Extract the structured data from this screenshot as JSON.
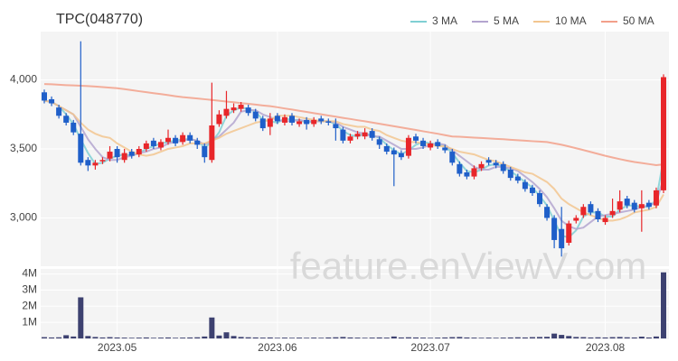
{
  "chart_data": {
    "type": "candlestick",
    "title": "TPC(048770)",
    "watermark": "feature.enViewV.com",
    "up_color": "#e8262a",
    "down_color": "#1f5fc9",
    "grid": true,
    "legend": "top-right",
    "ylim": [
      2650,
      4350
    ],
    "yticks": [
      {
        "value": 3000,
        "label": "3,000"
      },
      {
        "value": 3500,
        "label": "3,500"
      },
      {
        "value": 4000,
        "label": "4,000"
      }
    ],
    "xlim": [
      0,
      85
    ],
    "xticks": [
      {
        "value": 10,
        "label": "2023.05"
      },
      {
        "value": 32,
        "label": "2023.06"
      },
      {
        "value": 53,
        "label": "2023.07"
      },
      {
        "value": 77,
        "label": "2023.08"
      }
    ],
    "open": [
      3910,
      3860,
      3800,
      3740,
      3690,
      3610,
      3420,
      3380,
      3410,
      3430,
      3500,
      3420,
      3480,
      3460,
      3500,
      3560,
      3510,
      3550,
      3580,
      3550,
      3600,
      3560,
      3520,
      3420,
      3680,
      3740,
      3780,
      3790,
      3800,
      3770,
      3720,
      3660,
      3740,
      3690,
      3740,
      3680,
      3710,
      3680,
      3720,
      3700,
      3680,
      3640,
      3560,
      3590,
      3590,
      3630,
      3570,
      3520,
      3490,
      3470,
      3450,
      3590,
      3560,
      3510,
      3550,
      3510,
      3480,
      3390,
      3330,
      3300,
      3360,
      3420,
      3400,
      3390,
      3350,
      3300,
      3260,
      3220,
      3180,
      3080,
      3000,
      2920,
      2820,
      2980,
      3020,
      3100,
      3050,
      2970,
      3020,
      3060,
      3140,
      3110,
      3070,
      3110,
      3090,
      3200
    ],
    "high": [
      3930,
      3880,
      3820,
      3760,
      3710,
      4280,
      3440,
      3420,
      3440,
      3520,
      3520,
      3500,
      3500,
      3520,
      3560,
      3580,
      3570,
      3640,
      3600,
      3620,
      3620,
      3580,
      3540,
      3980,
      3780,
      3920,
      3830,
      3840,
      3820,
      3790,
      3740,
      3760,
      3760,
      3750,
      3760,
      3720,
      3730,
      3730,
      3740,
      3720,
      3720,
      3660,
      3610,
      3630,
      3650,
      3650,
      3590,
      3540,
      3510,
      3490,
      3600,
      3610,
      3580,
      3560,
      3570,
      3530,
      3500,
      3410,
      3350,
      3380,
      3410,
      3440,
      3420,
      3410,
      3370,
      3320,
      3280,
      3240,
      3200,
      3100,
      3020,
      3080,
      2980,
      3020,
      3100,
      3120,
      3070,
      3020,
      3140,
      3200,
      3160,
      3130,
      3200,
      3130,
      3220,
      4040
    ],
    "low": [
      3830,
      3810,
      3720,
      3670,
      3600,
      3380,
      3340,
      3350,
      3390,
      3410,
      3400,
      3400,
      3430,
      3440,
      3480,
      3500,
      3490,
      3530,
      3520,
      3530,
      3540,
      3500,
      3400,
      3400,
      3660,
      3720,
      3760,
      3770,
      3740,
      3700,
      3630,
      3600,
      3680,
      3670,
      3670,
      3660,
      3640,
      3660,
      3680,
      3670,
      3560,
      3540,
      3540,
      3570,
      3570,
      3560,
      3500,
      3460,
      3230,
      3420,
      3430,
      3540,
      3500,
      3490,
      3500,
      3470,
      3380,
      3300,
      3280,
      3280,
      3340,
      3380,
      3360,
      3320,
      3270,
      3250,
      3190,
      3160,
      3080,
      2980,
      2780,
      2720,
      2800,
      2960,
      3000,
      3020,
      2970,
      2950,
      3000,
      3040,
      3070,
      3040,
      2900,
      3060,
      3070,
      3180
    ],
    "close": [
      3850,
      3830,
      3740,
      3690,
      3620,
      3400,
      3380,
      3400,
      3420,
      3480,
      3440,
      3470,
      3450,
      3500,
      3540,
      3520,
      3550,
      3580,
      3540,
      3600,
      3560,
      3530,
      3440,
      3670,
      3750,
      3790,
      3800,
      3820,
      3760,
      3720,
      3650,
      3720,
      3700,
      3730,
      3690,
      3700,
      3680,
      3710,
      3700,
      3690,
      3650,
      3560,
      3590,
      3610,
      3620,
      3580,
      3530,
      3480,
      3460,
      3440,
      3580,
      3560,
      3520,
      3540,
      3520,
      3490,
      3400,
      3320,
      3300,
      3360,
      3390,
      3400,
      3380,
      3340,
      3290,
      3270,
      3210,
      3180,
      3100,
      3000,
      2840,
      2780,
      2960,
      3000,
      3080,
      3040,
      2990,
      3000,
      3050,
      3120,
      3090,
      3060,
      3100,
      3080,
      3200,
      4020
    ],
    "series": [
      {
        "name": "3 MA",
        "color": "#7fcfd3",
        "values": [
          3850,
          3840,
          3810,
          3750,
          3680,
          3570,
          3470,
          3390,
          3400,
          3430,
          3450,
          3460,
          3450,
          3470,
          3500,
          3520,
          3540,
          3550,
          3560,
          3570,
          3570,
          3560,
          3510,
          3550,
          3620,
          3740,
          3780,
          3800,
          3790,
          3770,
          3710,
          3700,
          3690,
          3720,
          3710,
          3710,
          3690,
          3700,
          3700,
          3700,
          3680,
          3630,
          3600,
          3590,
          3610,
          3600,
          3580,
          3530,
          3490,
          3460,
          3490,
          3530,
          3550,
          3540,
          3530,
          3520,
          3470,
          3400,
          3340,
          3330,
          3350,
          3380,
          3390,
          3370,
          3340,
          3300,
          3260,
          3220,
          3160,
          3090,
          2980,
          2870,
          2860,
          2910,
          3010,
          3040,
          3040,
          3010,
          3010,
          3060,
          3090,
          3090,
          3080,
          3080,
          3130,
          3430
        ]
      },
      {
        "name": "5 MA",
        "color": "#b3a4cf",
        "values": [
          3850,
          3840,
          3810,
          3780,
          3750,
          3660,
          3570,
          3500,
          3440,
          3420,
          3420,
          3440,
          3450,
          3470,
          3480,
          3500,
          3510,
          3540,
          3550,
          3560,
          3570,
          3560,
          3530,
          3560,
          3590,
          3640,
          3690,
          3770,
          3780,
          3780,
          3750,
          3730,
          3710,
          3700,
          3700,
          3710,
          3700,
          3700,
          3700,
          3700,
          3690,
          3660,
          3640,
          3620,
          3610,
          3590,
          3590,
          3560,
          3530,
          3500,
          3500,
          3500,
          3510,
          3530,
          3540,
          3530,
          3490,
          3450,
          3410,
          3370,
          3350,
          3350,
          3370,
          3370,
          3360,
          3340,
          3300,
          3260,
          3210,
          3150,
          3070,
          2980,
          2940,
          2920,
          2930,
          2970,
          3010,
          3020,
          3030,
          3040,
          3050,
          3060,
          3080,
          3090,
          3110,
          3290
        ]
      },
      {
        "name": "10 MA",
        "color": "#f2c58f",
        "values": [
          3850,
          3840,
          3810,
          3780,
          3750,
          3690,
          3640,
          3610,
          3590,
          3580,
          3540,
          3510,
          3480,
          3460,
          3450,
          3460,
          3480,
          3500,
          3510,
          3520,
          3540,
          3540,
          3540,
          3560,
          3580,
          3610,
          3630,
          3650,
          3670,
          3690,
          3700,
          3710,
          3740,
          3740,
          3740,
          3730,
          3720,
          3710,
          3700,
          3700,
          3700,
          3680,
          3670,
          3660,
          3660,
          3640,
          3630,
          3600,
          3580,
          3560,
          3550,
          3550,
          3540,
          3530,
          3520,
          3520,
          3500,
          3480,
          3470,
          3460,
          3440,
          3420,
          3410,
          3390,
          3370,
          3350,
          3330,
          3320,
          3290,
          3260,
          3210,
          3140,
          3100,
          3070,
          3040,
          3020,
          3000,
          2980,
          2980,
          2990,
          3010,
          3040,
          3050,
          3060,
          3080,
          3170
        ]
      },
      {
        "name": "50 MA",
        "color": "#f2a08a",
        "values": [
          3970,
          3968,
          3965,
          3962,
          3960,
          3958,
          3955,
          3952,
          3948,
          3944,
          3940,
          3933,
          3926,
          3918,
          3911,
          3904,
          3897,
          3890,
          3882,
          3875,
          3870,
          3865,
          3860,
          3855,
          3849,
          3843,
          3838,
          3832,
          3827,
          3821,
          3815,
          3810,
          3802,
          3793,
          3785,
          3776,
          3768,
          3759,
          3751,
          3742,
          3734,
          3725,
          3717,
          3708,
          3700,
          3691,
          3682,
          3673,
          3664,
          3655,
          3646,
          3637,
          3628,
          3619,
          3610,
          3600,
          3590,
          3588,
          3585,
          3582,
          3579,
          3576,
          3573,
          3570,
          3566,
          3563,
          3560,
          3556,
          3553,
          3550,
          3540,
          3530,
          3518,
          3505,
          3492,
          3478,
          3464,
          3450,
          3438,
          3426,
          3415,
          3405,
          3398,
          3390,
          3382,
          3388
        ]
      }
    ],
    "volume": {
      "color": "#3d4170",
      "ylim": [
        0,
        4200000
      ],
      "yticks": [
        {
          "value": 1000000,
          "label": "1M"
        },
        {
          "value": 2000000,
          "label": "2M"
        },
        {
          "value": 3000000,
          "label": "3M"
        },
        {
          "value": 4000000,
          "label": "4M"
        }
      ],
      "values": [
        80000,
        60000,
        70000,
        200000,
        120000,
        2550000,
        150000,
        90000,
        60000,
        80000,
        60000,
        50000,
        40000,
        50000,
        60000,
        40000,
        50000,
        60000,
        40000,
        50000,
        60000,
        70000,
        120000,
        1300000,
        180000,
        380000,
        150000,
        90000,
        70000,
        60000,
        50000,
        60000,
        40000,
        50000,
        40000,
        50000,
        40000,
        50000,
        40000,
        60000,
        70000,
        90000,
        60000,
        50000,
        40000,
        50000,
        60000,
        50000,
        120000,
        60000,
        70000,
        60000,
        50000,
        40000,
        50000,
        60000,
        80000,
        90000,
        60000,
        50000,
        40000,
        50000,
        40000,
        50000,
        60000,
        70000,
        60000,
        80000,
        90000,
        100000,
        300000,
        220000,
        150000,
        90000,
        80000,
        60000,
        70000,
        60000,
        80000,
        90000,
        70000,
        60000,
        110000,
        60000,
        120000,
        4100000
      ]
    }
  }
}
